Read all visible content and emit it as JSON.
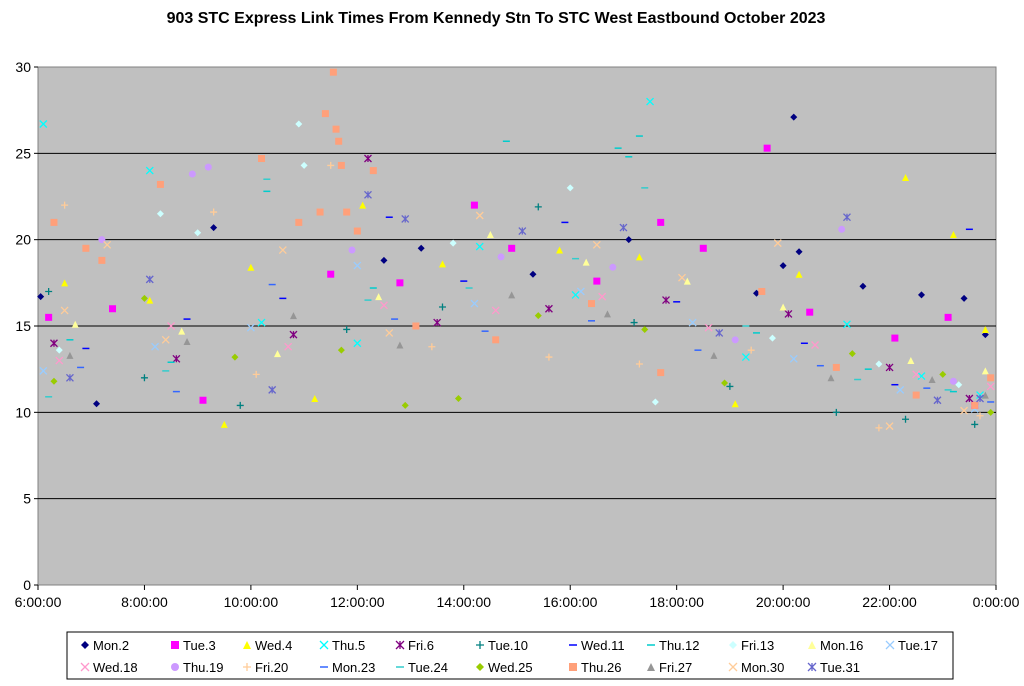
{
  "chart_data": {
    "type": "scatter",
    "title": "903 STC Express Link Times From Kennedy Stn To STC West Eastbound October 2023",
    "xlabel": "",
    "ylabel": "",
    "x_range_hours": [
      6,
      24
    ],
    "ylim": [
      0,
      30
    ],
    "y_ticks": [
      0,
      5,
      10,
      15,
      20,
      25,
      30
    ],
    "x_tick_labels": [
      "6:00:00",
      "8:00:00",
      "10:00:00",
      "12:00:00",
      "14:00:00",
      "16:00:00",
      "18:00:00",
      "20:00:00",
      "22:00:00",
      "0:00:00"
    ],
    "grid": "horizontal",
    "legend_position": "bottom",
    "plot_background": "#C0C0C0",
    "series": [
      {
        "name": "Mon.2",
        "marker": "diamond",
        "color": "#000080",
        "points": [
          [
            6.05,
            16.7
          ],
          [
            7.1,
            10.5
          ],
          [
            9.3,
            20.7
          ],
          [
            12.5,
            18.8
          ],
          [
            13.2,
            19.5
          ],
          [
            15.3,
            18.0
          ],
          [
            17.1,
            20.0
          ],
          [
            19.5,
            16.9
          ],
          [
            20.2,
            27.1
          ],
          [
            20.3,
            19.3
          ],
          [
            21.5,
            17.3
          ],
          [
            22.6,
            16.8
          ],
          [
            23.4,
            16.6
          ],
          [
            23.8,
            14.5
          ],
          [
            20.0,
            18.5
          ]
        ]
      },
      {
        "name": "Tue.3",
        "marker": "square",
        "color": "#FF00FF",
        "points": [
          [
            6.2,
            15.5
          ],
          [
            7.4,
            16.0
          ],
          [
            9.1,
            10.7
          ],
          [
            11.5,
            18.0
          ],
          [
            12.8,
            17.5
          ],
          [
            14.2,
            22.0
          ],
          [
            14.9,
            19.5
          ],
          [
            16.5,
            17.6
          ],
          [
            17.7,
            21.0
          ],
          [
            18.5,
            19.5
          ],
          [
            19.7,
            25.3
          ],
          [
            20.5,
            15.8
          ],
          [
            22.1,
            14.3
          ],
          [
            23.1,
            15.5
          ],
          [
            23.6,
            10.4
          ]
        ]
      },
      {
        "name": "Wed.4",
        "marker": "triangle",
        "color": "#FFFF00",
        "points": [
          [
            6.5,
            17.5
          ],
          [
            8.1,
            16.5
          ],
          [
            9.5,
            9.3
          ],
          [
            10.0,
            18.4
          ],
          [
            12.1,
            22.0
          ],
          [
            13.6,
            18.6
          ],
          [
            15.8,
            19.4
          ],
          [
            17.3,
            19.0
          ],
          [
            19.1,
            10.5
          ],
          [
            20.3,
            18.0
          ],
          [
            22.3,
            23.6
          ],
          [
            23.2,
            20.3
          ],
          [
            23.8,
            14.8
          ],
          [
            11.2,
            10.8
          ]
        ]
      },
      {
        "name": "Thu.5",
        "marker": "x",
        "color": "#00FFFF",
        "points": [
          [
            6.1,
            26.7
          ],
          [
            8.1,
            24.0
          ],
          [
            10.2,
            15.2
          ],
          [
            12.0,
            14.0
          ],
          [
            14.3,
            19.6
          ],
          [
            16.1,
            16.8
          ],
          [
            17.5,
            28.0
          ],
          [
            19.3,
            13.2
          ],
          [
            21.2,
            15.1
          ],
          [
            22.6,
            12.1
          ],
          [
            23.7,
            11.0
          ]
        ]
      },
      {
        "name": "Fri.6",
        "marker": "star",
        "color": "#800080",
        "points": [
          [
            6.3,
            14.0
          ],
          [
            8.6,
            13.1
          ],
          [
            10.8,
            14.5
          ],
          [
            12.2,
            24.7
          ],
          [
            13.5,
            15.2
          ],
          [
            15.6,
            16.0
          ],
          [
            17.8,
            16.5
          ],
          [
            20.1,
            15.7
          ],
          [
            22.0,
            12.6
          ],
          [
            23.5,
            10.8
          ]
        ]
      },
      {
        "name": "Tue.10",
        "marker": "plus",
        "color": "#008080",
        "points": [
          [
            6.2,
            17.0
          ],
          [
            8.0,
            12.0
          ],
          [
            9.8,
            10.4
          ],
          [
            11.8,
            14.8
          ],
          [
            13.6,
            16.1
          ],
          [
            15.4,
            21.9
          ],
          [
            17.2,
            15.2
          ],
          [
            19.0,
            11.5
          ],
          [
            21.0,
            10.0
          ],
          [
            22.3,
            9.6
          ],
          [
            23.6,
            9.3
          ]
        ]
      },
      {
        "name": "Wed.11",
        "marker": "dash",
        "color": "#0000FF",
        "points": [
          [
            6.9,
            13.7
          ],
          [
            8.8,
            15.4
          ],
          [
            10.6,
            16.6
          ],
          [
            12.6,
            21.3
          ],
          [
            14.0,
            17.6
          ],
          [
            15.9,
            21.0
          ],
          [
            18.0,
            16.4
          ],
          [
            20.4,
            14.0
          ],
          [
            22.1,
            11.6
          ],
          [
            23.5,
            20.6
          ]
        ]
      },
      {
        "name": "Thu.12",
        "marker": "dash",
        "color": "#00CCCC",
        "points": [
          [
            6.6,
            14.2
          ],
          [
            8.5,
            12.9
          ],
          [
            10.3,
            22.8
          ],
          [
            12.3,
            17.2
          ],
          [
            14.8,
            25.7
          ],
          [
            16.9,
            25.3
          ],
          [
            17.1,
            24.8
          ],
          [
            17.3,
            26.0
          ],
          [
            19.5,
            14.6
          ],
          [
            21.6,
            12.5
          ],
          [
            23.2,
            11.2
          ]
        ]
      },
      {
        "name": "Fri.13",
        "marker": "diamond",
        "color": "#CCFFFF",
        "points": [
          [
            6.4,
            13.6
          ],
          [
            8.3,
            21.5
          ],
          [
            9.0,
            20.4
          ],
          [
            10.9,
            26.7
          ],
          [
            11.0,
            24.3
          ],
          [
            13.8,
            19.8
          ],
          [
            16.0,
            23.0
          ],
          [
            17.6,
            10.6
          ],
          [
            19.8,
            14.3
          ],
          [
            21.8,
            12.8
          ],
          [
            23.3,
            11.6
          ]
        ]
      },
      {
        "name": "Mon.16",
        "marker": "triangle",
        "color": "#FFFF99",
        "points": [
          [
            6.7,
            15.1
          ],
          [
            8.7,
            14.7
          ],
          [
            10.5,
            13.4
          ],
          [
            12.4,
            16.7
          ],
          [
            14.5,
            20.3
          ],
          [
            16.3,
            18.7
          ],
          [
            18.2,
            17.6
          ],
          [
            20.0,
            16.1
          ],
          [
            22.4,
            13.0
          ],
          [
            23.8,
            12.4
          ]
        ]
      },
      {
        "name": "Tue.17",
        "marker": "x",
        "color": "#99CCFF",
        "points": [
          [
            6.1,
            12.4
          ],
          [
            8.2,
            13.8
          ],
          [
            10.0,
            14.9
          ],
          [
            12.0,
            18.5
          ],
          [
            14.2,
            16.3
          ],
          [
            16.2,
            17.0
          ],
          [
            18.3,
            15.2
          ],
          [
            20.2,
            13.1
          ],
          [
            22.2,
            11.3
          ],
          [
            23.6,
            10.2
          ]
        ]
      },
      {
        "name": "Wed.18",
        "marker": "x",
        "color": "#FF99CC",
        "points": [
          [
            6.4,
            13.0
          ],
          [
            8.5,
            15.0
          ],
          [
            10.7,
            13.8
          ],
          [
            12.5,
            16.2
          ],
          [
            14.6,
            15.9
          ],
          [
            16.6,
            16.7
          ],
          [
            18.6,
            14.9
          ],
          [
            20.6,
            13.9
          ],
          [
            22.5,
            12.2
          ],
          [
            23.9,
            11.5
          ]
        ]
      },
      {
        "name": "Thu.19",
        "marker": "circle",
        "color": "#CC99FF",
        "points": [
          [
            6.3,
            21.0
          ],
          [
            7.2,
            20.0
          ],
          [
            8.9,
            23.8
          ],
          [
            9.2,
            24.2
          ],
          [
            11.9,
            19.4
          ],
          [
            14.7,
            19.0
          ],
          [
            16.8,
            18.4
          ],
          [
            19.1,
            14.2
          ],
          [
            21.1,
            20.6
          ],
          [
            23.2,
            11.8
          ]
        ]
      },
      {
        "name": "Fri.20",
        "marker": "plus",
        "color": "#FFCC99",
        "points": [
          [
            6.5,
            22.0
          ],
          [
            9.3,
            21.6
          ],
          [
            10.1,
            12.2
          ],
          [
            11.5,
            24.3
          ],
          [
            13.4,
            13.8
          ],
          [
            15.6,
            13.2
          ],
          [
            17.3,
            12.8
          ],
          [
            19.4,
            13.6
          ],
          [
            21.8,
            9.1
          ],
          [
            23.7,
            9.8
          ]
        ]
      },
      {
        "name": "Mon.23",
        "marker": "dash",
        "color": "#3366FF",
        "points": [
          [
            6.8,
            12.6
          ],
          [
            8.6,
            11.2
          ],
          [
            10.4,
            17.4
          ],
          [
            12.7,
            15.4
          ],
          [
            14.4,
            14.7
          ],
          [
            16.4,
            15.3
          ],
          [
            18.4,
            13.6
          ],
          [
            20.7,
            12.7
          ],
          [
            22.7,
            11.4
          ],
          [
            23.9,
            10.6
          ]
        ]
      },
      {
        "name": "Tue.24",
        "marker": "dash",
        "color": "#33CCCC",
        "points": [
          [
            6.2,
            10.9
          ],
          [
            8.4,
            12.4
          ],
          [
            10.3,
            23.5
          ],
          [
            12.2,
            16.5
          ],
          [
            14.1,
            17.2
          ],
          [
            16.1,
            18.9
          ],
          [
            17.4,
            23.0
          ],
          [
            19.3,
            15.0
          ],
          [
            21.4,
            11.9
          ],
          [
            23.1,
            11.3
          ]
        ]
      },
      {
        "name": "Wed.25",
        "marker": "diamond",
        "color": "#99CC00",
        "points": [
          [
            6.3,
            11.8
          ],
          [
            8.0,
            16.6
          ],
          [
            9.7,
            13.2
          ],
          [
            11.7,
            13.6
          ],
          [
            12.9,
            10.4
          ],
          [
            13.9,
            10.8
          ],
          [
            15.4,
            15.6
          ],
          [
            17.4,
            14.8
          ],
          [
            18.9,
            11.7
          ],
          [
            21.3,
            13.4
          ],
          [
            23.0,
            12.2
          ],
          [
            23.9,
            10.0
          ]
        ]
      },
      {
        "name": "Thu.26",
        "marker": "square",
        "color": "#FFA07A",
        "points": [
          [
            6.3,
            21.0
          ],
          [
            6.9,
            19.5
          ],
          [
            7.2,
            18.8
          ],
          [
            8.3,
            23.2
          ],
          [
            10.2,
            24.7
          ],
          [
            10.9,
            21.0
          ],
          [
            11.3,
            21.6
          ],
          [
            11.4,
            27.3
          ],
          [
            11.55,
            29.7
          ],
          [
            11.6,
            26.4
          ],
          [
            11.65,
            25.7
          ],
          [
            11.7,
            24.3
          ],
          [
            11.8,
            21.6
          ],
          [
            12.0,
            20.5
          ],
          [
            12.3,
            24.0
          ],
          [
            13.1,
            15.0
          ],
          [
            14.6,
            14.2
          ],
          [
            16.4,
            16.3
          ],
          [
            17.7,
            12.3
          ],
          [
            19.6,
            17.0
          ],
          [
            21.0,
            12.6
          ],
          [
            22.5,
            11.0
          ],
          [
            23.6,
            10.4
          ],
          [
            23.9,
            12.0
          ]
        ]
      },
      {
        "name": "Fri.27",
        "marker": "triangle",
        "color": "#969696",
        "points": [
          [
            6.6,
            13.3
          ],
          [
            8.8,
            14.1
          ],
          [
            10.8,
            15.6
          ],
          [
            12.8,
            13.9
          ],
          [
            14.9,
            16.8
          ],
          [
            16.7,
            15.7
          ],
          [
            18.7,
            13.3
          ],
          [
            20.9,
            12.0
          ],
          [
            22.8,
            11.9
          ],
          [
            23.8,
            11.0
          ]
        ]
      },
      {
        "name": "Mon.30",
        "marker": "x",
        "color": "#FFCC99",
        "points": [
          [
            6.5,
            15.9
          ],
          [
            7.3,
            19.7
          ],
          [
            8.4,
            14.2
          ],
          [
            10.6,
            19.4
          ],
          [
            12.6,
            14.6
          ],
          [
            14.3,
            21.4
          ],
          [
            16.5,
            19.7
          ],
          [
            18.1,
            17.8
          ],
          [
            19.9,
            19.8
          ],
          [
            22.0,
            9.2
          ],
          [
            23.4,
            10.1
          ]
        ]
      },
      {
        "name": "Tue.31",
        "marker": "star",
        "color": "#6666CC",
        "points": [
          [
            6.6,
            12.0
          ],
          [
            8.1,
            17.7
          ],
          [
            10.4,
            11.3
          ],
          [
            12.2,
            22.6
          ],
          [
            12.9,
            21.2
          ],
          [
            15.1,
            20.5
          ],
          [
            17.0,
            20.7
          ],
          [
            18.8,
            14.6
          ],
          [
            21.2,
            21.3
          ],
          [
            22.9,
            10.7
          ],
          [
            23.7,
            10.8
          ]
        ]
      }
    ]
  }
}
